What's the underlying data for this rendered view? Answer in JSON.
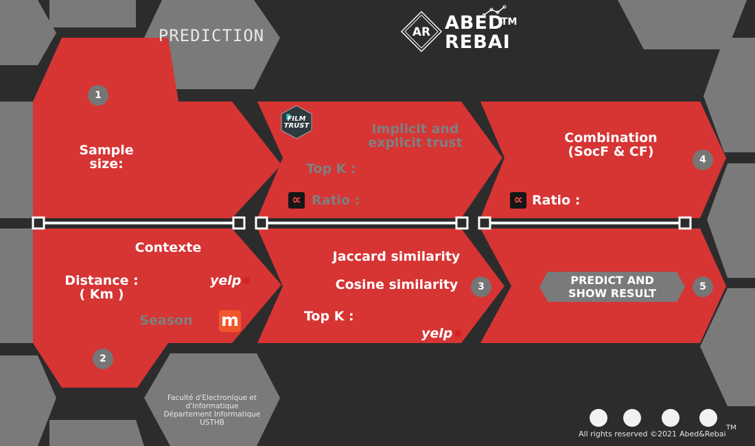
{
  "header": {
    "page_title": "PREDICTION",
    "logo_badge": "AR",
    "brand_line1": "ABED",
    "brand_line2": "REBAI",
    "trademark": "TM"
  },
  "step1": {
    "number": "1",
    "sample_size_label": "Sample\nsize:"
  },
  "step2": {
    "number": "2",
    "contexte_label": "Contexte",
    "distance_label": "Distance :\n( Km )",
    "season_label": "Season",
    "yelp_logo": "yelp",
    "m_logo": "m"
  },
  "trust_panel": {
    "filmtrust_logo": "FILM\nTRUST",
    "trust_type_label": "Implicit and\nexplicit trust",
    "topk_label": "Top K :",
    "ratio_label": "Ratio :",
    "alpha_icon": "∝"
  },
  "step3": {
    "number": "3",
    "jaccard_label": "Jaccard similarity",
    "cosine_label": "Cosine similarity",
    "topk_label": "Top K :",
    "yelp_logo": "yelp"
  },
  "step4": {
    "number": "4",
    "combination_label": "Combination\n(SocF & CF)",
    "ratio_label": "Ratio :",
    "alpha_icon": "∝"
  },
  "step5": {
    "number": "5",
    "predict_button_label": "PREDICT AND\nSHOW RESULT"
  },
  "footer": {
    "faculty_text": "Faculté d'Electronique et\nd'Informatique\nDépartement Informatique\nUSTHB",
    "rights": "All rights reserved ©2021",
    "brand": "Abed&Rebai",
    "trademark": "TM"
  },
  "colors": {
    "background": "#2c2c2c",
    "red_panel": "#d73434",
    "gray_hex": "#7a7a7a",
    "accent_white": "#ffffff"
  }
}
